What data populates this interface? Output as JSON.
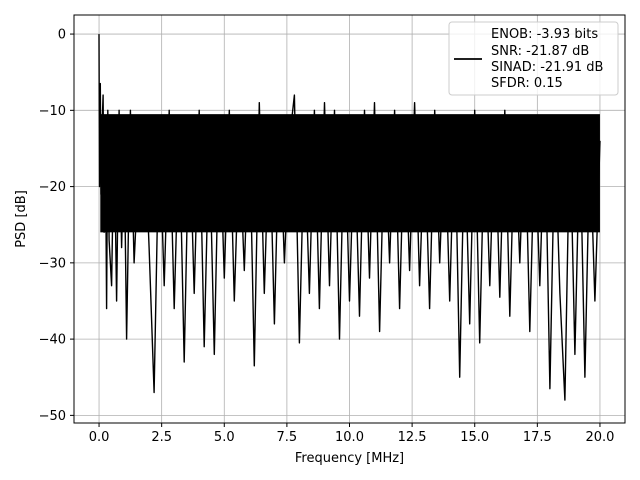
{
  "chart_data": {
    "type": "line",
    "xlabel": "Frequency [MHz]",
    "ylabel": "PSD [dB]",
    "xlim": [
      -1.0,
      21.0
    ],
    "ylim": [
      -51.0,
      2.5
    ],
    "xticks": [
      0.0,
      2.5,
      5.0,
      7.5,
      10.0,
      12.5,
      15.0,
      17.5,
      20.0
    ],
    "xtick_labels": [
      "0.0",
      "2.5",
      "5.0",
      "7.5",
      "10.0",
      "12.5",
      "15.0",
      "17.5",
      "20.0"
    ],
    "yticks": [
      0,
      -10,
      -20,
      -30,
      -40,
      -50
    ],
    "ytick_labels": [
      "0",
      "−10",
      "−20",
      "−30",
      "−40",
      "−50"
    ],
    "grid": true,
    "legend_position": "top-right",
    "legend": [
      "ENOB: -3.93 bits",
      "SNR: -21.87 dB",
      "SINAD: -21.91 dB",
      "SFDR: 0.15"
    ],
    "series": [
      {
        "color": "#000000",
        "x": [
          0.0,
          0.02,
          0.05,
          0.08,
          0.12,
          0.16,
          0.2,
          0.25,
          0.3,
          0.35,
          0.4,
          0.5,
          0.6,
          0.7,
          0.8,
          0.9,
          1.0,
          1.1,
          1.25,
          1.4,
          1.6,
          1.8,
          2.0,
          2.2,
          2.4,
          2.6,
          2.8,
          3.0,
          3.2,
          3.4,
          3.6,
          3.8,
          4.0,
          4.2,
          4.4,
          4.6,
          4.8,
          5.0,
          5.2,
          5.4,
          5.6,
          5.8,
          6.0,
          6.2,
          6.4,
          6.6,
          6.8,
          7.0,
          7.2,
          7.4,
          7.6,
          7.8,
          8.0,
          8.2,
          8.4,
          8.6,
          8.8,
          9.0,
          9.2,
          9.4,
          9.6,
          9.8,
          10.0,
          10.2,
          10.4,
          10.6,
          10.8,
          11.0,
          11.2,
          11.4,
          11.6,
          11.8,
          12.0,
          12.2,
          12.4,
          12.6,
          12.8,
          13.0,
          13.2,
          13.4,
          13.6,
          13.8,
          14.0,
          14.2,
          14.4,
          14.6,
          14.8,
          15.0,
          15.2,
          15.4,
          15.6,
          15.8,
          16.0,
          16.2,
          16.4,
          16.6,
          16.8,
          17.0,
          17.2,
          17.4,
          17.6,
          17.8,
          18.0,
          18.2,
          18.4,
          18.6,
          18.8,
          19.0,
          19.2,
          19.4,
          19.6,
          19.8,
          20.0
        ],
        "y": [
          0.0,
          -20.0,
          -6.5,
          -21.0,
          -12.0,
          -8.0,
          -26.0,
          -12.0,
          -36.0,
          -10.0,
          -27.0,
          -33.0,
          -12.0,
          -35.0,
          -10.0,
          -28.0,
          -14.0,
          -40.0,
          -10.0,
          -30.0,
          -16.0,
          -11.0,
          -28.0,
          -47.0,
          -12.0,
          -33.0,
          -10.0,
          -36.0,
          -12.0,
          -43.0,
          -11.0,
          -34.0,
          -10.0,
          -41.0,
          -13.0,
          -42.0,
          -11.0,
          -32.0,
          -10.0,
          -35.0,
          -14.0,
          -31.0,
          -11.0,
          -43.5,
          -9.0,
          -34.0,
          -12.0,
          -38.0,
          -11.0,
          -30.0,
          -14.0,
          -8.0,
          -40.5,
          -13.0,
          -34.0,
          -10.0,
          -36.0,
          -9.0,
          -33.0,
          -10.0,
          -40.0,
          -11.0,
          -35.0,
          -13.0,
          -37.0,
          -10.0,
          -32.0,
          -9.0,
          -39.0,
          -12.0,
          -30.0,
          -10.0,
          -36.0,
          -11.0,
          -31.0,
          -9.0,
          -33.0,
          -13.0,
          -36.0,
          -10.0,
          -30.0,
          -12.0,
          -35.0,
          -11.0,
          -45.0,
          -13.0,
          -38.0,
          -10.0,
          -40.5,
          -12.0,
          -33.0,
          -11.0,
          -34.5,
          -10.0,
          -37.0,
          -12.0,
          -30.0,
          -11.0,
          -39.0,
          -13.0,
          -33.0,
          -11.0,
          -46.5,
          -13.0,
          -34.0,
          -48.0,
          -12.0,
          -42.0,
          -13.0,
          -45.0,
          -14.0,
          -35.0,
          -14.0
        ]
      }
    ]
  }
}
